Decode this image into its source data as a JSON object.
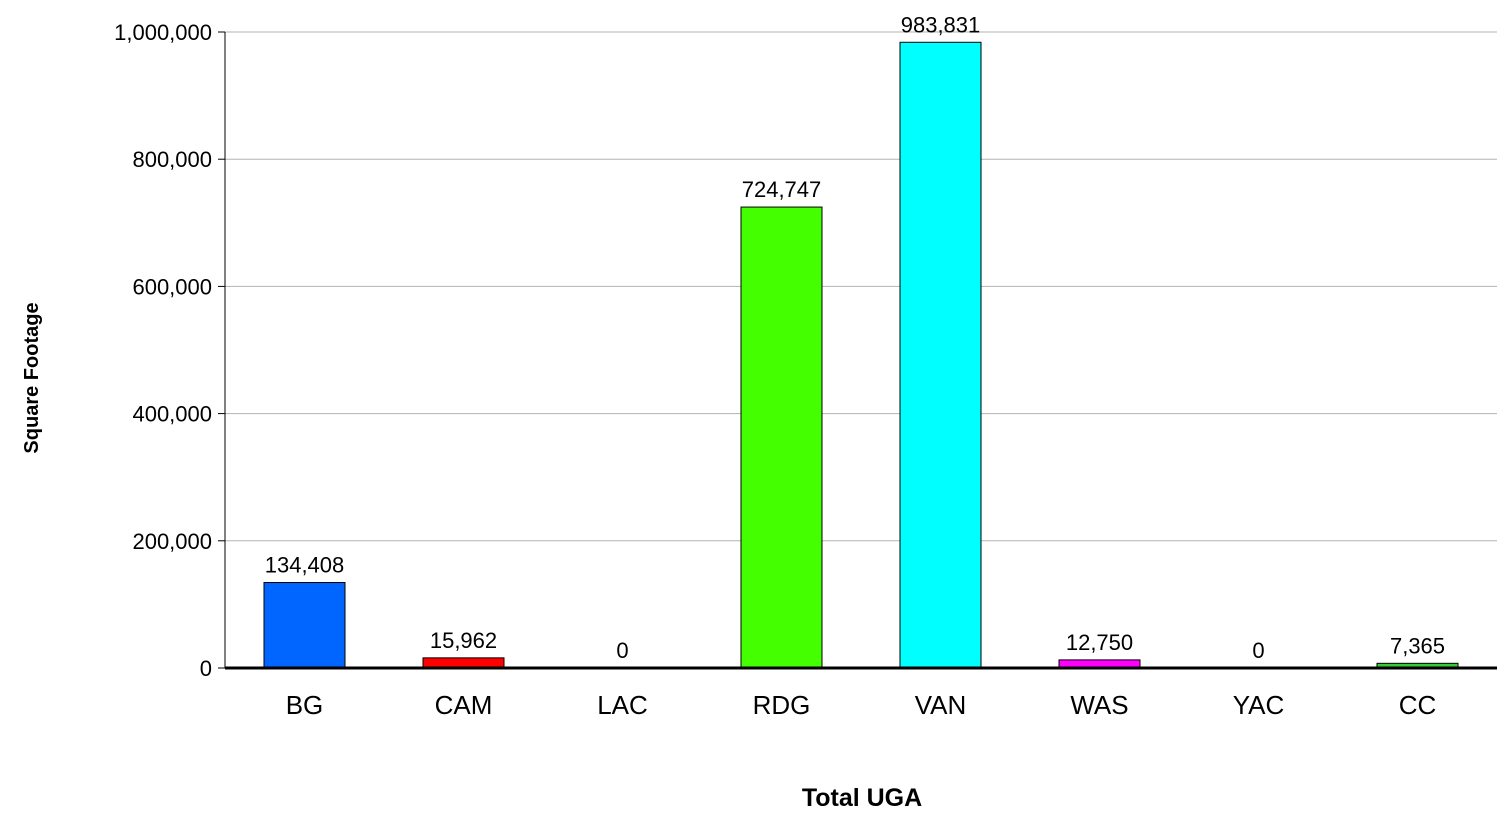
{
  "chart_data": {
    "type": "bar",
    "title": "",
    "xlabel": "Total UGA",
    "ylabel": "Square Footage",
    "categories": [
      "BG",
      "CAM",
      "LAC",
      "RDG",
      "VAN",
      "WAS",
      "YAC",
      "CC"
    ],
    "values": [
      134408,
      15962,
      0,
      724747,
      983831,
      12750,
      0,
      7365
    ],
    "data_labels": [
      "134,408",
      "15,962",
      "0",
      "724,747",
      "983,831",
      "12,750",
      "0",
      "7,365"
    ],
    "bar_colors": [
      "#0066FF",
      "#FF0000",
      "#00CC00",
      "#44FF00",
      "#00FFFF",
      "#FF00FF",
      "#999999",
      "#33CC33"
    ],
    "ylim": [
      0,
      1000000
    ],
    "yticks": [
      0,
      200000,
      400000,
      600000,
      800000,
      1000000
    ],
    "ytick_labels": [
      "0",
      "200,000",
      "400,000",
      "600,000",
      "800,000",
      "1,000,000"
    ],
    "grid": true,
    "legend": "none"
  }
}
